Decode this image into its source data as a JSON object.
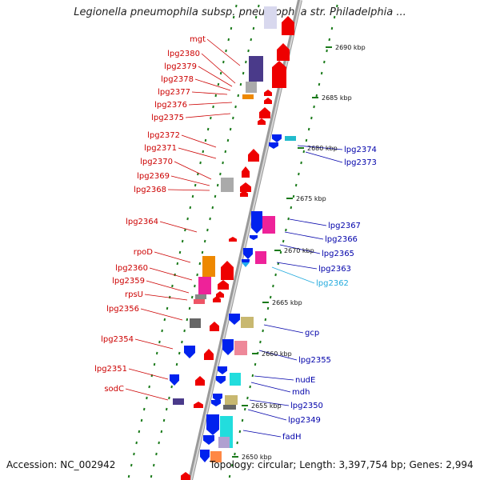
{
  "title": "Legionella pneumophila subsp. pneumophila str. Philadelphia ...",
  "accession_label": "Accession: NC_002942",
  "summary_label": "Topology: circular; Length: 3,397,754 bp; Genes: 2,994",
  "colors": {
    "left_label": "#cc0000",
    "right_label": "#0000aa",
    "highlight_label": "#22aadd",
    "backbone": "#8a8a8a",
    "tick": "#1a7a1a"
  },
  "kbp_marks": [
    "2690 kbp",
    "2685 kbp",
    "2680 kbp",
    "2675 kbp",
    "2670 kbp",
    "2665 kbp",
    "2660 kbp",
    "2655 kbp",
    "2650 kbp"
  ],
  "left_labels": [
    "mgt",
    "lpg2380",
    "lpg2379",
    "lpg2378",
    "lpg2377",
    "lpg2376",
    "lpg2375",
    "lpg2372",
    "lpg2371",
    "lpg2370",
    "lpg2369",
    "lpg2368",
    "lpg2364",
    "rpoD",
    "lpg2360",
    "lpg2359",
    "rpsU",
    "lpg2356",
    "lpg2354",
    "lpg2351",
    "sodC"
  ],
  "right_labels": [
    "lpg2374",
    "lpg2373",
    "lpg2367",
    "lpg2366",
    "lpg2365",
    "lpg2363",
    "lpg2362",
    "gcp",
    "lpg2355",
    "nudE",
    "mdh",
    "lpg2350",
    "lpg2349",
    "fadH"
  ]
}
